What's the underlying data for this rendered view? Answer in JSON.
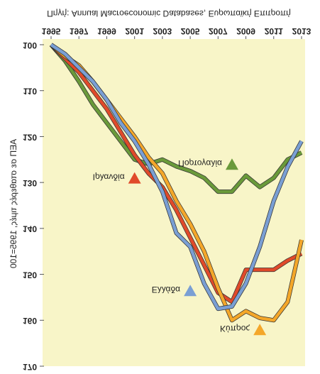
{
  "chart_data": {
    "type": "line",
    "source": "Πηγή: Annual Macroeconomic Databases, Ευρωπαϊκή Επιτροπή",
    "y_label": "ΑΕΠ σε σταθερές τιμές, 1995=100",
    "x": [
      1995,
      1996,
      1997,
      1998,
      1999,
      2000,
      2001,
      2002,
      2003,
      2004,
      2005,
      2006,
      2007,
      2008,
      2009,
      2010,
      2011,
      2012,
      2013
    ],
    "xlim": [
      1995,
      2013
    ],
    "xticks": [
      1995,
      1997,
      1999,
      2001,
      2003,
      2005,
      2007,
      2009,
      2011,
      2013
    ],
    "ylim": [
      100,
      170
    ],
    "yticks": [
      100,
      110,
      120,
      130,
      140,
      150,
      160,
      170
    ],
    "series": [
      {
        "name": "Πορτογαλία",
        "color": "#6a9a3a",
        "values": [
          100,
          103.5,
          108,
          113,
          117,
          121,
          125,
          126,
          125,
          126.5,
          127.5,
          129,
          132,
          132,
          128.5,
          131,
          129,
          125,
          123.5
        ]
      },
      {
        "name": "Ιρλανδία",
        "color": "#e04a2a",
        "values": [
          100,
          103,
          106,
          110,
          114,
          119,
          124,
          128,
          131,
          136,
          142,
          148,
          154,
          156,
          149,
          149,
          149,
          147,
          145.5
        ]
      },
      {
        "name": "Κύπρος",
        "color": "#f4a72a",
        "values": [
          100,
          102.5,
          104.5,
          108,
          112,
          116,
          120,
          124.5,
          128,
          134,
          139,
          145,
          153,
          160,
          158,
          159.5,
          160,
          156,
          142.5
        ]
      },
      {
        "name": "Ελλάδα",
        "color": "#7a9fd4",
        "values": [
          100,
          102,
          105,
          108,
          112,
          117,
          121,
          126,
          132,
          141,
          144,
          152,
          157.5,
          157,
          152,
          144,
          134,
          126.6,
          121
        ]
      }
    ],
    "annotations": [
      {
        "text": "Πορτογαλία",
        "x": 2008,
        "y": 126
      },
      {
        "text": "Ιρλανδία",
        "x": 2001,
        "y": 129
      },
      {
        "text": "Ελλάδα",
        "x": 2005,
        "y": 153.5
      },
      {
        "text": "Κύπρος",
        "x": 2010,
        "y": 162
      }
    ]
  }
}
